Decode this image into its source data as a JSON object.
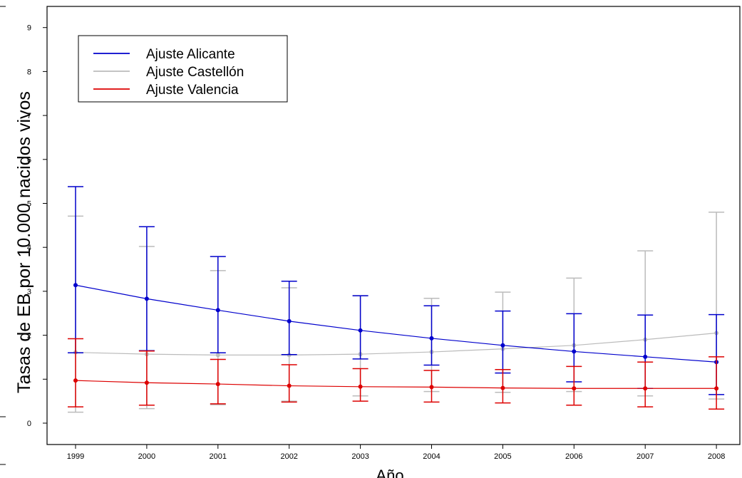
{
  "chart_data": {
    "type": "line",
    "title": "",
    "xlabel": "Año",
    "ylabel": "Tasas de EB por 10.000 nacidos vivos",
    "categories": [
      "1999",
      "2000",
      "2001",
      "2002",
      "2003",
      "2004",
      "2005",
      "2006",
      "2007",
      "2008"
    ],
    "y_ticks": [
      "0",
      "1",
      "2",
      "3",
      "4",
      "5",
      "6",
      "7",
      "8",
      "9"
    ],
    "ylim": [
      -0.45,
      9.4
    ],
    "grid": false,
    "legend_position": "top-left",
    "series": [
      {
        "name": "Ajuste Alicante",
        "color": "#0000cc",
        "values": [
          3.14,
          2.83,
          2.57,
          2.32,
          2.11,
          1.93,
          1.77,
          1.63,
          1.51,
          1.39
        ],
        "lower": [
          1.6,
          1.65,
          1.6,
          1.56,
          1.46,
          1.32,
          1.14,
          0.94,
          0.79,
          0.65
        ],
        "upper": [
          5.38,
          4.47,
          3.79,
          3.23,
          2.9,
          2.67,
          2.55,
          2.49,
          2.46,
          2.47
        ]
      },
      {
        "name": "Ajuste Castellón",
        "color": "#bbbbbb",
        "values": [
          1.61,
          1.57,
          1.55,
          1.55,
          1.57,
          1.62,
          1.69,
          1.77,
          1.9,
          2.05
        ],
        "lower": [
          0.25,
          0.33,
          0.42,
          0.5,
          0.62,
          0.72,
          0.7,
          0.72,
          0.62,
          0.55
        ],
        "upper": [
          4.71,
          4.02,
          3.47,
          3.08,
          2.9,
          2.84,
          2.98,
          3.3,
          3.92,
          4.8
        ]
      },
      {
        "name": "Ajuste Valencia",
        "color": "#dd0000",
        "values": [
          0.97,
          0.92,
          0.89,
          0.85,
          0.83,
          0.82,
          0.8,
          0.79,
          0.79,
          0.79
        ],
        "lower": [
          0.37,
          0.41,
          0.44,
          0.48,
          0.5,
          0.48,
          0.46,
          0.41,
          0.37,
          0.32
        ],
        "upper": [
          1.92,
          1.64,
          1.45,
          1.33,
          1.24,
          1.2,
          1.22,
          1.29,
          1.39,
          1.51
        ]
      }
    ]
  }
}
